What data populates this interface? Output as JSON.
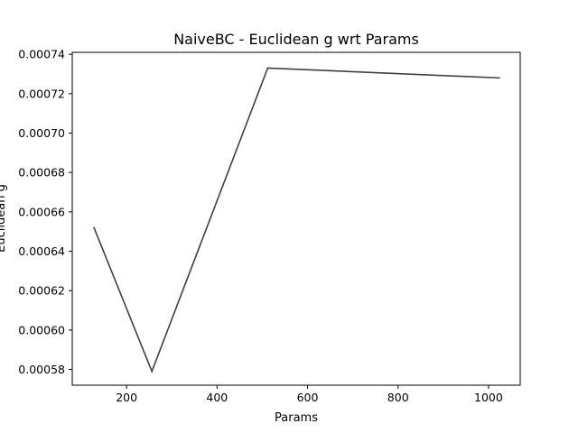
{
  "chart_data": {
    "type": "line",
    "title": "NaiveBC - Euclidean g wrt Params",
    "xlabel": "Params",
    "ylabel": "Euclidean g",
    "xlim": [
      80,
      1070
    ],
    "ylim": [
      0.000572,
      0.000741
    ],
    "x_ticks": [
      200,
      400,
      600,
      800,
      1000
    ],
    "x_tick_labels": [
      "200",
      "400",
      "600",
      "800",
      "1000"
    ],
    "y_ticks": [
      0.00058,
      0.0006,
      0.00062,
      0.00064,
      0.00066,
      0.00068,
      0.0007,
      0.00072,
      0.00074
    ],
    "y_tick_labels": [
      "0.00058",
      "0.00060",
      "0.00062",
      "0.00064",
      "0.00066",
      "0.00068",
      "0.00070",
      "0.00072",
      "0.00074"
    ],
    "grid": false,
    "series": [
      {
        "color": "#404040",
        "x": [
          128,
          256,
          512,
          1024
        ],
        "y": [
          0.000652,
          0.000579,
          0.000733,
          0.000728
        ]
      }
    ]
  }
}
